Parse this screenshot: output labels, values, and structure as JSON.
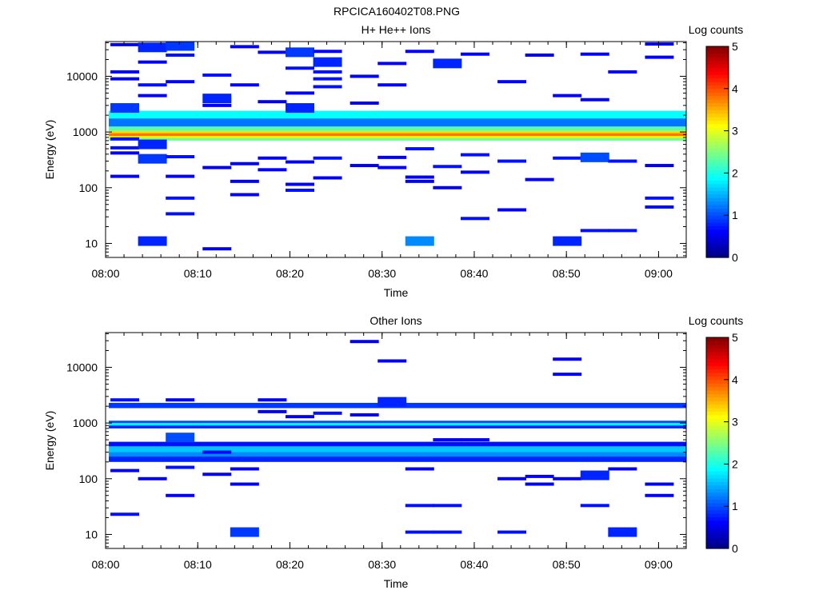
{
  "figure_title": "RPCICA160402T08.PNG",
  "chart_data": [
    {
      "type": "heatmap",
      "title": "H+ He++ Ions",
      "xlabel": "Time",
      "ylabel": "Energy (eV)",
      "x_ticks": [
        "08:00",
        "08:10",
        "08:20",
        "08:30",
        "08:40",
        "08:50",
        "09:00"
      ],
      "y_ticks": [
        "10",
        "100",
        "1000",
        "10000"
      ],
      "y_scale": "log",
      "ylim": [
        5.6,
        42000
      ],
      "colorbar": {
        "label": "Log counts",
        "ticks": [
          "0",
          "1",
          "2",
          "3",
          "4",
          "5"
        ],
        "range": [
          0,
          5
        ]
      },
      "time_bins": [
        "08:02",
        "08:05",
        "08:08",
        "08:12",
        "08:15",
        "08:18",
        "08:21",
        "08:24",
        "08:28",
        "08:31",
        "08:34",
        "08:37",
        "08:40",
        "08:44",
        "08:47",
        "08:50",
        "08:53",
        "08:56",
        "09:00"
      ],
      "bands": [
        {
          "e_min": 1750,
          "e_max": 2400,
          "log_counts": 1.9
        },
        {
          "e_min": 1250,
          "e_max": 1750,
          "log_counts": 1.2
        },
        {
          "e_min": 1050,
          "e_max": 1250,
          "log_counts": 2.3
        },
        {
          "e_min": 950,
          "e_max": 1050,
          "log_counts": 3.3
        },
        {
          "e_min": 850,
          "e_max": 950,
          "log_counts": 3.8
        },
        {
          "e_min": 780,
          "e_max": 850,
          "log_counts": 3.2
        },
        {
          "e_min": 700,
          "e_max": 780,
          "log_counts": 2.4
        }
      ],
      "cells": [
        {
          "t": 0,
          "e": 2700,
          "v": 0.5
        },
        {
          "t": 0,
          "e": 750,
          "v": 0.3
        },
        {
          "t": 0,
          "e": 520,
          "v": 0.3
        },
        {
          "t": 0,
          "e": 420,
          "v": 0.2
        },
        {
          "t": 0,
          "e": 160,
          "v": 0.2
        },
        {
          "t": 0,
          "e": 9000,
          "v": 0.2
        },
        {
          "t": 0,
          "e": 12000,
          "v": 0.2
        },
        {
          "t": 0,
          "e": 37000,
          "v": 0.1
        },
        {
          "t": 1,
          "e": 11,
          "v": 0.4
        },
        {
          "t": 1,
          "e": 330,
          "v": 0.5
        },
        {
          "t": 1,
          "e": 600,
          "v": 0.4
        },
        {
          "t": 1,
          "e": 7000,
          "v": 0.3
        },
        {
          "t": 1,
          "e": 33000,
          "v": 0.4
        },
        {
          "t": 1,
          "e": 18000,
          "v": 0.2
        },
        {
          "t": 1,
          "e": 4500,
          "v": 0.2
        },
        {
          "t": 2,
          "e": 34,
          "v": 0.3
        },
        {
          "t": 2,
          "e": 65,
          "v": 0.3
        },
        {
          "t": 2,
          "e": 160,
          "v": 0.2
        },
        {
          "t": 2,
          "e": 360,
          "v": 0.3
        },
        {
          "t": 2,
          "e": 35000,
          "v": 0.5
        },
        {
          "t": 2,
          "e": 24000,
          "v": 0.3
        },
        {
          "t": 2,
          "e": 8000,
          "v": 0.2
        },
        {
          "t": 3,
          "e": 8,
          "v": 0.2
        },
        {
          "t": 3,
          "e": 230,
          "v": 0.1
        },
        {
          "t": 3,
          "e": 4000,
          "v": 0.4
        },
        {
          "t": 3,
          "e": 10500,
          "v": 0.3
        },
        {
          "t": 3,
          "e": 3000,
          "v": 0.2
        },
        {
          "t": 4,
          "e": 75,
          "v": 0.2
        },
        {
          "t": 4,
          "e": 130,
          "v": 0.2
        },
        {
          "t": 4,
          "e": 270,
          "v": 0.2
        },
        {
          "t": 4,
          "e": 34000,
          "v": 0.2
        },
        {
          "t": 4,
          "e": 7000,
          "v": 0.2
        },
        {
          "t": 5,
          "e": 210,
          "v": 0.2
        },
        {
          "t": 5,
          "e": 340,
          "v": 0.2
        },
        {
          "t": 5,
          "e": 27000,
          "v": 0.2
        },
        {
          "t": 5,
          "e": 3500,
          "v": 0.2
        },
        {
          "t": 6,
          "e": 90,
          "v": 0.3
        },
        {
          "t": 6,
          "e": 115,
          "v": 0.2
        },
        {
          "t": 6,
          "e": 290,
          "v": 0.2
        },
        {
          "t": 6,
          "e": 27000,
          "v": 0.5
        },
        {
          "t": 6,
          "e": 14000,
          "v": 0.3
        },
        {
          "t": 6,
          "e": 5000,
          "v": 0.2
        },
        {
          "t": 6,
          "e": 2700,
          "v": 0.4
        },
        {
          "t": 7,
          "e": 150,
          "v": 0.2
        },
        {
          "t": 7,
          "e": 340,
          "v": 0.3
        },
        {
          "t": 7,
          "e": 18000,
          "v": 0.4
        },
        {
          "t": 7,
          "e": 12000,
          "v": 0.3
        },
        {
          "t": 7,
          "e": 9000,
          "v": 0.3
        },
        {
          "t": 7,
          "e": 6500,
          "v": 0.3
        },
        {
          "t": 7,
          "e": 28000,
          "v": 0.2
        },
        {
          "t": 8,
          "e": 3300,
          "v": 0.2
        },
        {
          "t": 8,
          "e": 250,
          "v": 0.2
        },
        {
          "t": 8,
          "e": 10000,
          "v": 0.2
        },
        {
          "t": 9,
          "e": 230,
          "v": 0.2
        },
        {
          "t": 9,
          "e": 350,
          "v": 0.2
        },
        {
          "t": 9,
          "e": 17000,
          "v": 0.2
        },
        {
          "t": 9,
          "e": 7000,
          "v": 0.2
        },
        {
          "t": 10,
          "e": 11,
          "v": 0.9
        },
        {
          "t": 10,
          "e": 130,
          "v": 0.2
        },
        {
          "t": 10,
          "e": 155,
          "v": 0.2
        },
        {
          "t": 10,
          "e": 500,
          "v": 0.3
        },
        {
          "t": 10,
          "e": 28000,
          "v": 0.2
        },
        {
          "t": 11,
          "e": 100,
          "v": 0.2
        },
        {
          "t": 11,
          "e": 240,
          "v": 0.3
        },
        {
          "t": 11,
          "e": 17000,
          "v": 0.4
        },
        {
          "t": 12,
          "e": 28,
          "v": 0.3
        },
        {
          "t": 12,
          "e": 190,
          "v": 0.2
        },
        {
          "t": 12,
          "e": 390,
          "v": 0.3
        },
        {
          "t": 12,
          "e": 25000,
          "v": 0.2
        },
        {
          "t": 13,
          "e": 40,
          "v": 0.2
        },
        {
          "t": 13,
          "e": 300,
          "v": 0.3
        },
        {
          "t": 13,
          "e": 8000,
          "v": 0.2
        },
        {
          "t": 14,
          "e": 140,
          "v": 0.2
        },
        {
          "t": 14,
          "e": 24000,
          "v": 0.2
        },
        {
          "t": 15,
          "e": 11,
          "v": 0.4
        },
        {
          "t": 15,
          "e": 340,
          "v": 0.3
        },
        {
          "t": 15,
          "e": 4500,
          "v": 0.2
        },
        {
          "t": 16,
          "e": 17,
          "v": 0.3
        },
        {
          "t": 16,
          "e": 350,
          "v": 0.6
        },
        {
          "t": 16,
          "e": 3800,
          "v": 0.2
        },
        {
          "t": 16,
          "e": 25000,
          "v": 0.2
        },
        {
          "t": 17,
          "e": 17,
          "v": 0.3
        },
        {
          "t": 17,
          "e": 300,
          "v": 0.3
        },
        {
          "t": 17,
          "e": 12000,
          "v": 0.2
        },
        {
          "t": 18,
          "e": 45,
          "v": 0.3
        },
        {
          "t": 18,
          "e": 65,
          "v": 0.3
        },
        {
          "t": 18,
          "e": 250,
          "v": 0.2
        },
        {
          "t": 18,
          "e": 38000,
          "v": 0.2
        },
        {
          "t": 18,
          "e": 22000,
          "v": 0.2
        }
      ]
    },
    {
      "type": "heatmap",
      "title": "Other Ions",
      "xlabel": "Time",
      "ylabel": "Energy (eV)",
      "x_ticks": [
        "08:00",
        "08:10",
        "08:20",
        "08:30",
        "08:40",
        "08:50",
        "09:00"
      ],
      "y_ticks": [
        "10",
        "100",
        "1000",
        "10000"
      ],
      "y_scale": "log",
      "ylim": [
        5.6,
        42000
      ],
      "colorbar": {
        "label": "Log counts",
        "ticks": [
          "0",
          "1",
          "2",
          "3",
          "4",
          "5"
        ],
        "range": [
          0,
          5
        ]
      },
      "time_bins": [
        "08:02",
        "08:05",
        "08:08",
        "08:12",
        "08:15",
        "08:18",
        "08:21",
        "08:24",
        "08:28",
        "08:31",
        "08:34",
        "08:37",
        "08:40",
        "08:44",
        "08:47",
        "08:50",
        "08:53",
        "08:56",
        "09:00"
      ],
      "bands": [
        {
          "e_min": 1850,
          "e_max": 2300,
          "log_counts": 0.9
        },
        {
          "e_min": 1000,
          "e_max": 1100,
          "log_counts": 1.0
        },
        {
          "e_min": 900,
          "e_max": 1000,
          "log_counts": 1.8
        },
        {
          "e_min": 800,
          "e_max": 900,
          "log_counts": 0.8
        },
        {
          "e_min": 380,
          "e_max": 460,
          "log_counts": 0.7
        },
        {
          "e_min": 300,
          "e_max": 380,
          "log_counts": 1.6
        },
        {
          "e_min": 250,
          "e_max": 300,
          "log_counts": 1.3
        },
        {
          "e_min": 200,
          "e_max": 250,
          "log_counts": 0.8
        }
      ],
      "cells": [
        {
          "t": 0,
          "e": 23,
          "v": 0.3
        },
        {
          "t": 0,
          "e": 140,
          "v": 0.2
        },
        {
          "t": 0,
          "e": 2600,
          "v": 0.3
        },
        {
          "t": 1,
          "e": 100,
          "v": 0.2
        },
        {
          "t": 2,
          "e": 50,
          "v": 0.2
        },
        {
          "t": 2,
          "e": 160,
          "v": 0.3
        },
        {
          "t": 2,
          "e": 550,
          "v": 0.6
        },
        {
          "t": 2,
          "e": 2600,
          "v": 0.2
        },
        {
          "t": 3,
          "e": 120,
          "v": 0.2
        },
        {
          "t": 3,
          "e": 300,
          "v": 0.2
        },
        {
          "t": 4,
          "e": 11,
          "v": 0.5
        },
        {
          "t": 4,
          "e": 80,
          "v": 0.2
        },
        {
          "t": 4,
          "e": 150,
          "v": 0.2
        },
        {
          "t": 5,
          "e": 1600,
          "v": 0.2
        },
        {
          "t": 5,
          "e": 2600,
          "v": 0.2
        },
        {
          "t": 6,
          "e": 1300,
          "v": 0.2
        },
        {
          "t": 7,
          "e": 1500,
          "v": 0.3
        },
        {
          "t": 8,
          "e": 29000,
          "v": 0.2
        },
        {
          "t": 8,
          "e": 1400,
          "v": 0.2
        },
        {
          "t": 9,
          "e": 13000,
          "v": 0.2
        },
        {
          "t": 9,
          "e": 2400,
          "v": 0.4
        },
        {
          "t": 10,
          "e": 33,
          "v": 0.3
        },
        {
          "t": 10,
          "e": 11,
          "v": 0.3
        },
        {
          "t": 10,
          "e": 150,
          "v": 0.2
        },
        {
          "t": 11,
          "e": 33,
          "v": 0.3
        },
        {
          "t": 11,
          "e": 11,
          "v": 0.3
        },
        {
          "t": 11,
          "e": 500,
          "v": 0.2
        },
        {
          "t": 12,
          "e": 500,
          "v": 0.2
        },
        {
          "t": 13,
          "e": 11,
          "v": 0.3
        },
        {
          "t": 13,
          "e": 100,
          "v": 0.2
        },
        {
          "t": 14,
          "e": 80,
          "v": 0.2
        },
        {
          "t": 14,
          "e": 110,
          "v": 0.2
        },
        {
          "t": 15,
          "e": 14000,
          "v": 0.2
        },
        {
          "t": 15,
          "e": 7500,
          "v": 0.2
        },
        {
          "t": 15,
          "e": 100,
          "v": 0.2
        },
        {
          "t": 16,
          "e": 33,
          "v": 0.3
        },
        {
          "t": 16,
          "e": 115,
          "v": 0.4
        },
        {
          "t": 17,
          "e": 11,
          "v": 0.4
        },
        {
          "t": 17,
          "e": 150,
          "v": 0.2
        },
        {
          "t": 18,
          "e": 50,
          "v": 0.2
        },
        {
          "t": 18,
          "e": 80,
          "v": 0.2
        }
      ]
    }
  ]
}
